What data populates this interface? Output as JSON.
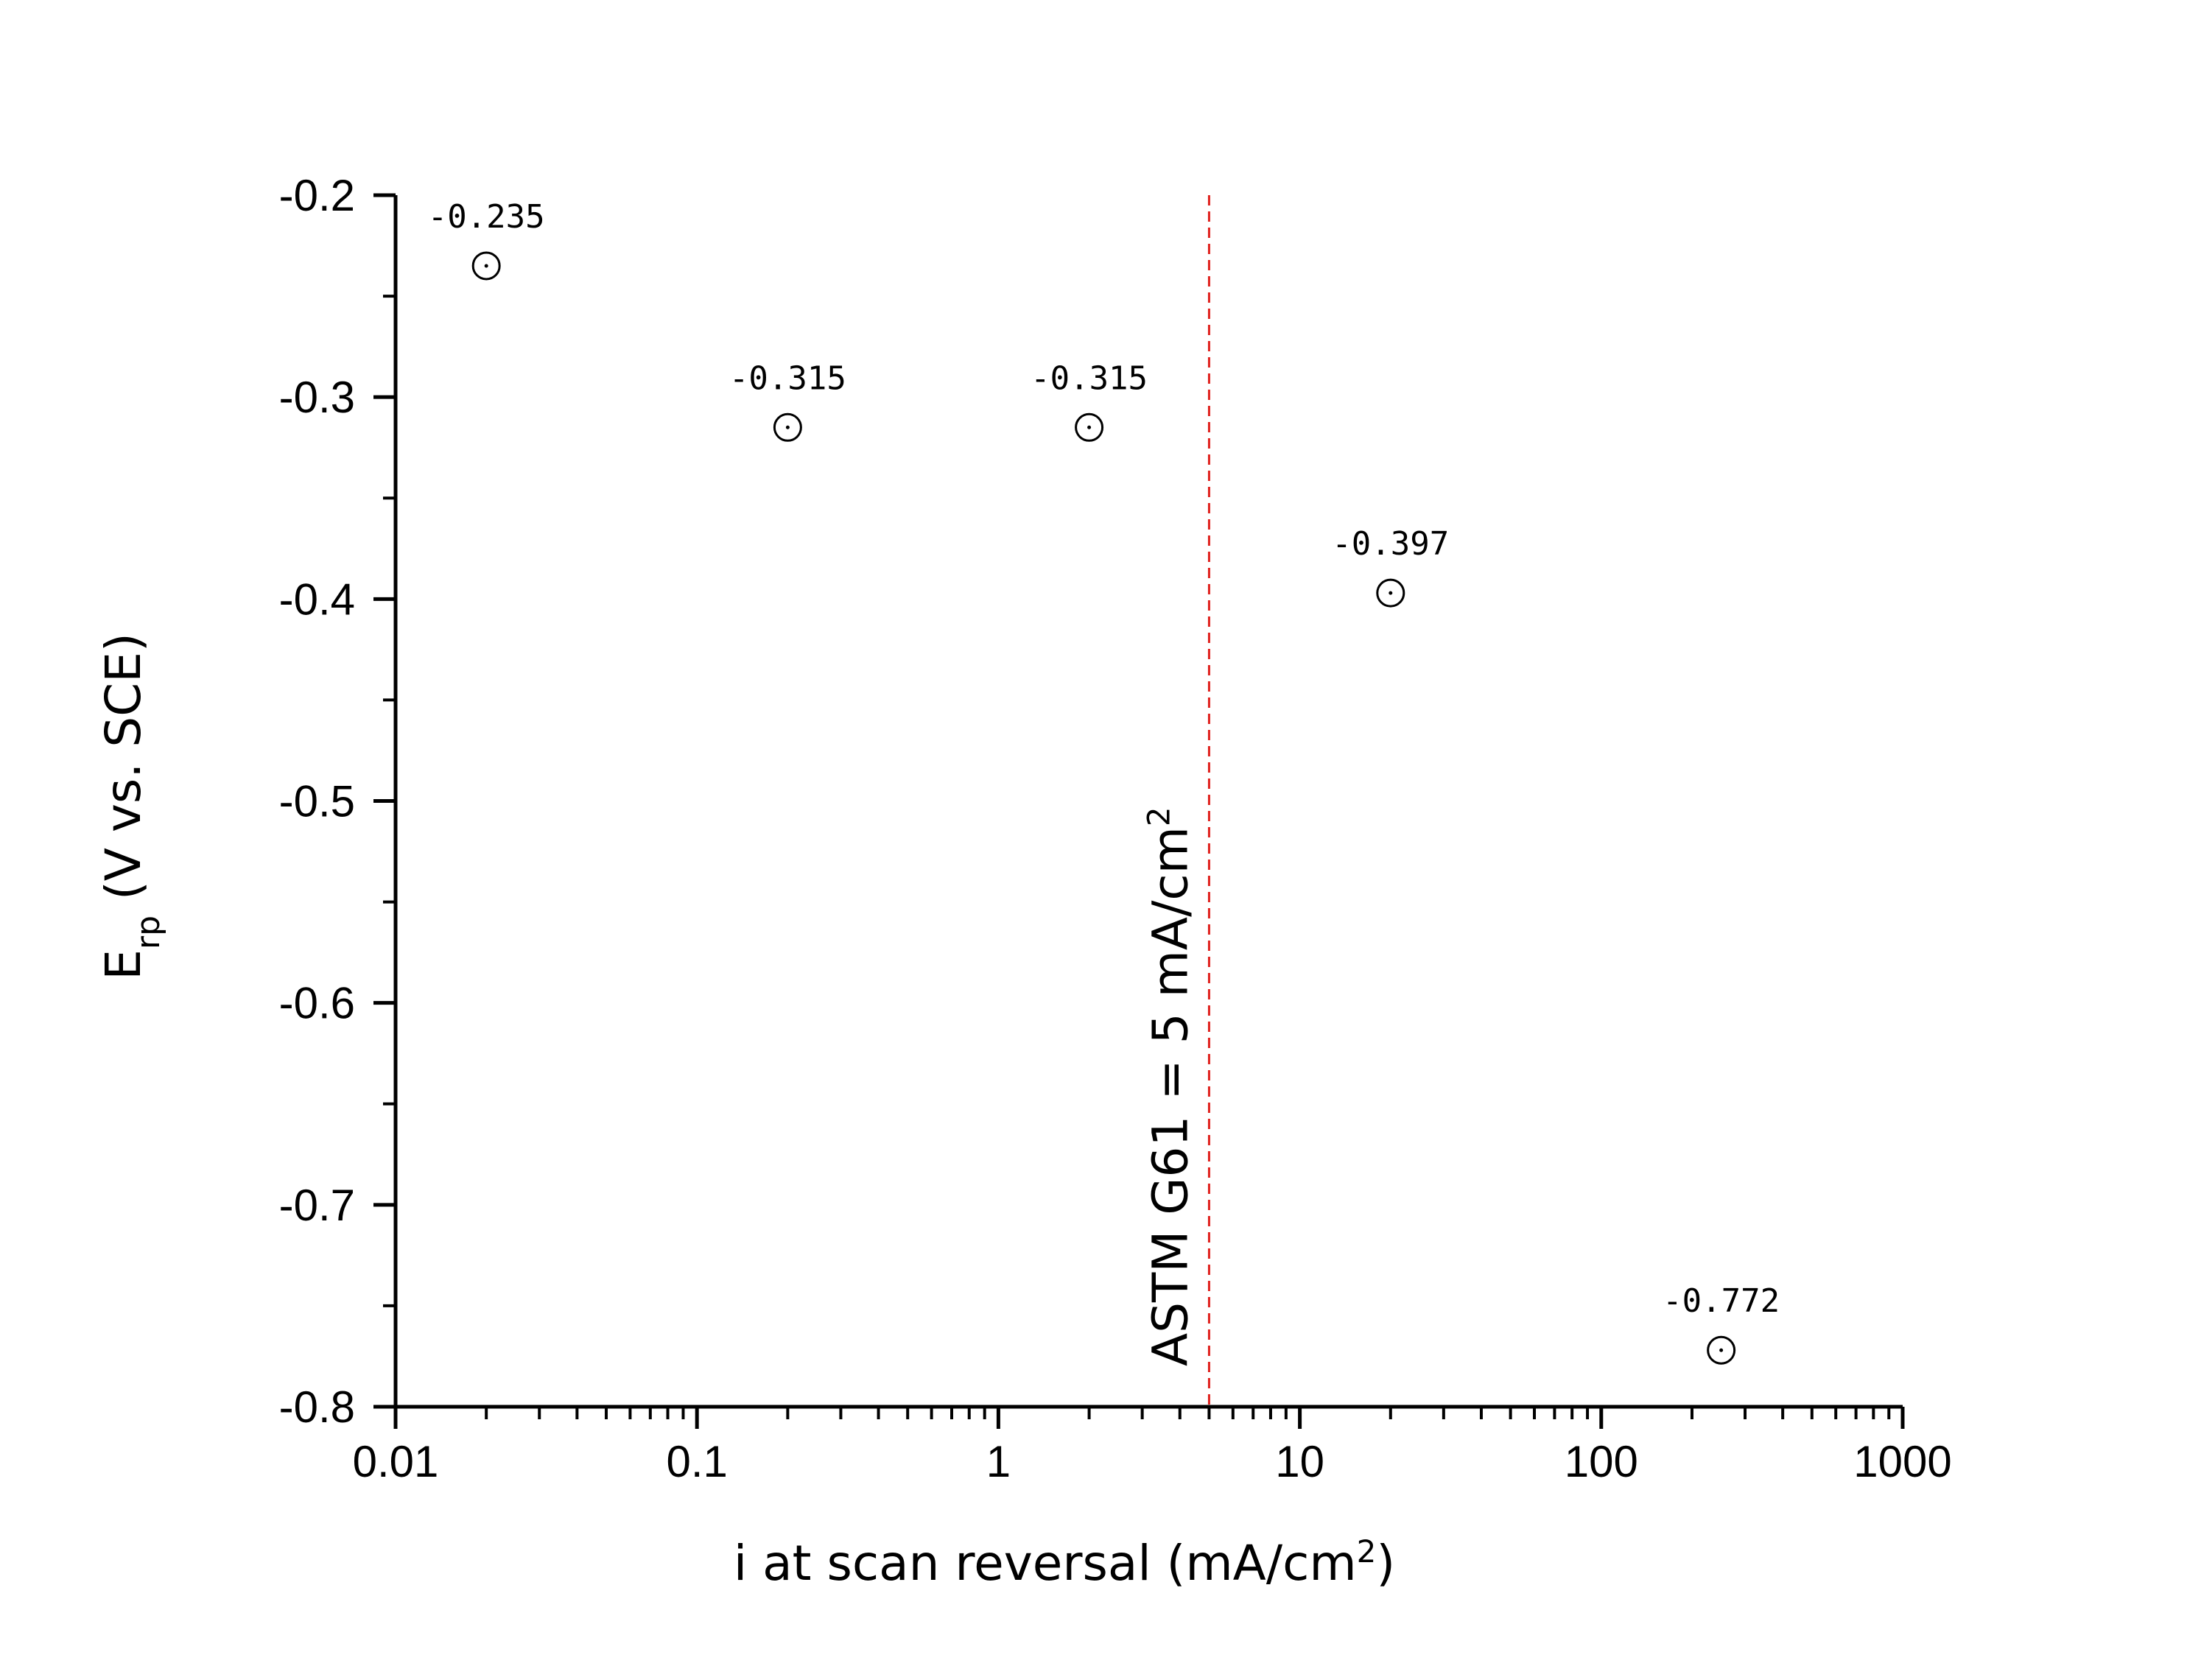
{
  "chart_data": {
    "type": "scatter",
    "x_scale": "log",
    "xlim": [
      0.01,
      1000
    ],
    "ylim": [
      -0.8,
      -0.2
    ],
    "xlabel_main": "i at scan reversal (mA/cm",
    "xlabel_sup": "2",
    "xlabel_end": ")",
    "ylabel_main": "E",
    "ylabel_sub": "rp",
    "ylabel_end": " (V vs. SCE)",
    "x_ticks": [
      0.01,
      0.1,
      1,
      10,
      100,
      1000
    ],
    "x_tick_labels": [
      "0.01",
      "0.1",
      "1",
      "10",
      "100",
      "1000"
    ],
    "y_ticks": [
      -0.2,
      -0.3,
      -0.4,
      -0.5,
      -0.6,
      -0.7,
      -0.8
    ],
    "y_tick_labels": [
      "-0.2",
      "-0.3",
      "-0.4",
      "-0.5",
      "-0.6",
      "-0.7",
      "-0.8"
    ],
    "points": [
      {
        "x": 0.02,
        "y": -0.235,
        "label": "-0.235"
      },
      {
        "x": 0.2,
        "y": -0.315,
        "label": "-0.315"
      },
      {
        "x": 2,
        "y": -0.315,
        "label": "-0.315"
      },
      {
        "x": 20,
        "y": -0.397,
        "label": "-0.397"
      },
      {
        "x": 250,
        "y": -0.772,
        "label": "-0.772"
      }
    ],
    "reference_line": {
      "x": 5,
      "color": "#e0201c",
      "label_main": "ASTM G61  = 5 mA/cm",
      "label_sup": "2"
    },
    "grid": false,
    "legend": "none"
  }
}
